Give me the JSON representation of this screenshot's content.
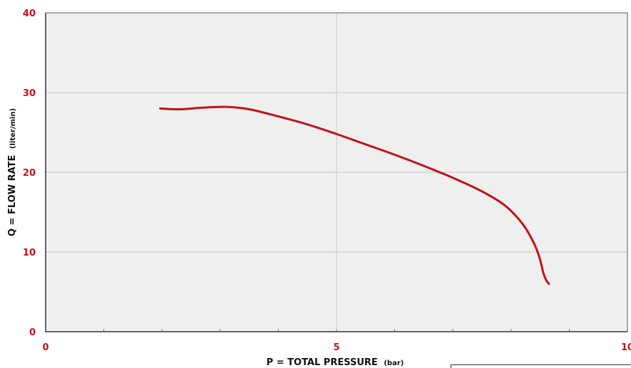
{
  "chart_data": {
    "type": "line",
    "title": "",
    "xlabel": "P = TOTAL PRESSURE",
    "xlabel_unit": "(bar)",
    "ylabel": "Q = FLOW RATE",
    "ylabel_unit": "(liter/min)",
    "xlim": [
      0,
      10
    ],
    "ylim": [
      0,
      40
    ],
    "x_ticks": [
      0,
      5,
      10
    ],
    "y_ticks": [
      0,
      10,
      20,
      30,
      40
    ],
    "grid": true,
    "plot_background": "#efefef",
    "grid_color": "#c4c4c4",
    "tick_color": "#c0131a",
    "series": [
      {
        "color": "#c0131a",
        "x": [
          1.97,
          2.3,
          2.7,
          3.1,
          3.5,
          4.0,
          4.5,
          5.0,
          5.5,
          6.0,
          6.5,
          7.0,
          7.5,
          7.9,
          8.2,
          8.4,
          8.5,
          8.55,
          8.6,
          8.65
        ],
        "y": [
          28.0,
          27.9,
          28.1,
          28.2,
          27.9,
          27.0,
          26.0,
          24.8,
          23.5,
          22.2,
          20.8,
          19.3,
          17.6,
          15.8,
          13.5,
          11.0,
          9.0,
          7.5,
          6.5,
          6.0
        ]
      }
    ]
  }
}
